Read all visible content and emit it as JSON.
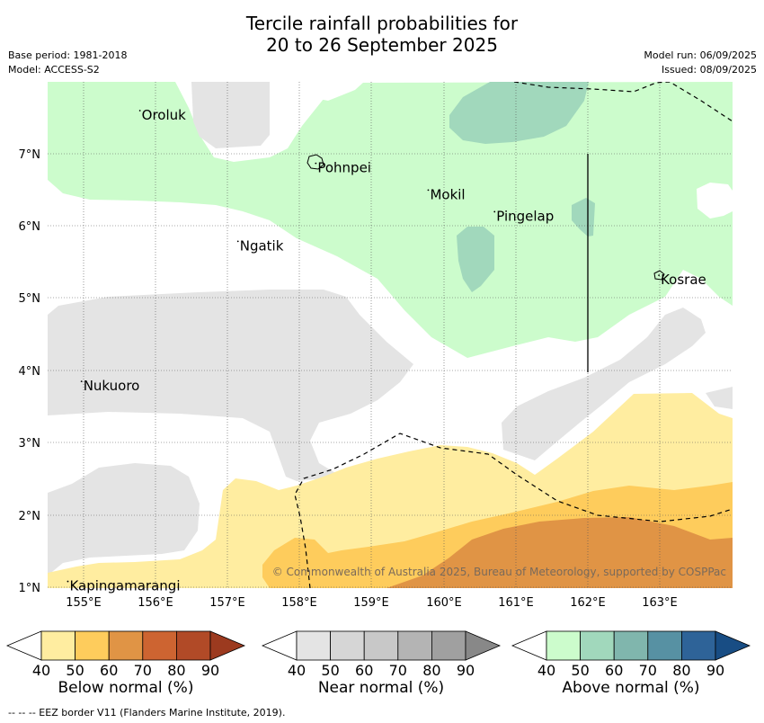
{
  "title": {
    "line1": "Tercile rainfall probabilities for",
    "line2": "20 to 26 September 2025"
  },
  "meta": {
    "base_period": "Base period: 1981-2018",
    "model": "Model: ACCESS-S2",
    "model_run": "Model run: 06/09/2025",
    "issued": "Issued: 08/09/2025"
  },
  "map": {
    "lat_ticks": [
      "1°N",
      "2°N",
      "3°N",
      "4°N",
      "5°N",
      "6°N",
      "7°N"
    ],
    "lon_ticks": [
      "155°E",
      "156°E",
      "157°E",
      "158°E",
      "159°E",
      "160°E",
      "161°E",
      "162°E",
      "163°E"
    ],
    "places": [
      {
        "name": "Oroluk",
        "lon": 155.78,
        "lat": 7.6
      },
      {
        "name": "Pohnpei",
        "lon": 158.22,
        "lat": 6.87
      },
      {
        "name": "Ngatik",
        "lon": 157.14,
        "lat": 5.79
      },
      {
        "name": "Mokil",
        "lon": 159.78,
        "lat": 6.5
      },
      {
        "name": "Pingelap",
        "lon": 160.7,
        "lat": 6.2
      },
      {
        "name": "Kosrae",
        "lon": 162.98,
        "lat": 5.32
      },
      {
        "name": "Nukuoro",
        "lon": 154.97,
        "lat": 3.85
      },
      {
        "name": "Kapingamarangi",
        "lon": 154.78,
        "lat": 1.08
      }
    ],
    "copyright": "© Commonwealth of Australia 2025, Bureau of Meteorology, supported by COSPPac"
  },
  "colorbars": [
    {
      "label": "Below normal (%)",
      "ticks": [
        "40",
        "50",
        "60",
        "70",
        "80",
        "90"
      ],
      "colors": [
        "#ffeda0",
        "#fecc5c",
        "#e09445",
        "#cd6431",
        "#b14a27",
        "#9c3a1f"
      ]
    },
    {
      "label": "Near normal (%)",
      "ticks": [
        "40",
        "50",
        "60",
        "70",
        "80",
        "90"
      ],
      "colors": [
        "#e4e4e4",
        "#d6d6d6",
        "#c8c8c8",
        "#b4b4b4",
        "#a0a0a0",
        "#888888"
      ]
    },
    {
      "label": "Above normal (%)",
      "ticks": [
        "40",
        "50",
        "60",
        "70",
        "80",
        "90"
      ],
      "colors": [
        "#ccfccc",
        "#a1d8bc",
        "#80b6ad",
        "#5791a3",
        "#2e6398",
        "#184d84"
      ]
    }
  ],
  "footnote": "--  --  -- EEZ border V11 (Flanders Marine Institute, 2019)."
}
